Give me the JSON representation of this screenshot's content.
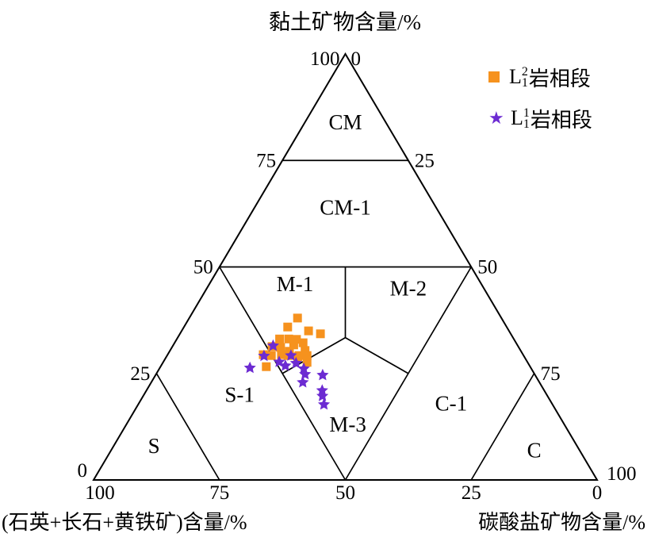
{
  "figure": {
    "top_axis_title": "黏土矿物含量/%",
    "bottom_left_axis_title": "(石英+长石+黄铁矿)含量/%",
    "bottom_right_axis_title": "碳酸盐矿物含量/%"
  },
  "legend": {
    "items": [
      {
        "symbol": "square",
        "color": "#F6921E",
        "label_prefix": "L",
        "label_sup": "2",
        "label_sub": "1",
        "label_text": "岩相段"
      },
      {
        "symbol": "star",
        "color": "#6C2BD2",
        "label_prefix": "L",
        "label_sup": "1",
        "label_sub": "1",
        "label_text": "岩相段"
      }
    ]
  },
  "chart_data": {
    "type": "scatter",
    "subtype": "ternary",
    "component_order": [
      "clay",
      "quartz_feldspar_pyrite",
      "carbonate"
    ],
    "axes": {
      "top_label": "黏土矿物含量/%",
      "bottom_left_label": "(石英+长石+黄铁矿)含量/%",
      "bottom_right_label": "碳酸盐矿物含量/%",
      "left_edge_ticks": [
        "100",
        "75",
        "50",
        "25",
        "0"
      ],
      "right_edge_ticks": [
        "0",
        "25",
        "50",
        "75",
        "100"
      ],
      "bottom_edge_ticks": [
        "100",
        "75",
        "50",
        "25",
        "0"
      ]
    },
    "outline": [
      [
        100,
        0,
        0
      ],
      [
        0,
        100,
        0
      ],
      [
        0,
        0,
        100
      ]
    ],
    "boundaries": [
      {
        "name": "clay-75-line",
        "from": [
          75,
          25,
          0
        ],
        "to": [
          75,
          0,
          25
        ]
      },
      {
        "name": "clay-50-line",
        "from": [
          50,
          50,
          0
        ],
        "to": [
          50,
          0,
          50
        ]
      },
      {
        "name": "m1-m2-divider",
        "from": [
          50,
          25,
          25
        ],
        "to": [
          33.4,
          33.3,
          33.3
        ]
      },
      {
        "name": "centroid-to-quartz50",
        "from": [
          33.4,
          33.3,
          33.3
        ],
        "to": [
          25,
          50,
          25
        ]
      },
      {
        "name": "centroid-to-carbonate50",
        "from": [
          33.4,
          33.3,
          33.3
        ],
        "to": [
          25,
          25,
          50
        ]
      },
      {
        "name": "quartz-50-line",
        "from": [
          50,
          50,
          0
        ],
        "to": [
          0,
          50,
          50
        ]
      },
      {
        "name": "carbonate-50-line",
        "from": [
          50,
          0,
          50
        ],
        "to": [
          0,
          50,
          50
        ]
      },
      {
        "name": "quartz-75-line",
        "from": [
          25,
          75,
          0
        ],
        "to": [
          0,
          75,
          25
        ]
      },
      {
        "name": "carbonate-75-line",
        "from": [
          25,
          0,
          75
        ],
        "to": [
          0,
          25,
          75
        ]
      }
    ],
    "regions": [
      {
        "label": "CM",
        "pos": [
          84,
          8,
          8
        ]
      },
      {
        "label": "CM-1",
        "pos": [
          64,
          18,
          18
        ]
      },
      {
        "label": "M-1",
        "pos": [
          46,
          37,
          17
        ]
      },
      {
        "label": "M-2",
        "pos": [
          45,
          15,
          40
        ]
      },
      {
        "label": "S-1",
        "pos": [
          20,
          61,
          19
        ]
      },
      {
        "label": "M-3",
        "pos": [
          13,
          43,
          44
        ]
      },
      {
        "label": "C-1",
        "pos": [
          18,
          20,
          62
        ]
      },
      {
        "label": "S",
        "pos": [
          8,
          84,
          8
        ]
      },
      {
        "label": "C",
        "pos": [
          7,
          9,
          84
        ]
      }
    ],
    "series": [
      {
        "name": "L1-2岩相段",
        "marker": "square",
        "color": "#F6921E",
        "points": [
          [
            38.0,
            40.5,
            21.5
          ],
          [
            35.9,
            43.5,
            20.6
          ],
          [
            35.0,
            39.8,
            25.2
          ],
          [
            34.3,
            37.8,
            27.9
          ],
          [
            33.1,
            46.5,
            20.4
          ],
          [
            33.1,
            44.7,
            22.2
          ],
          [
            33.0,
            43.2,
            23.8
          ],
          [
            32.2,
            42.3,
            25.5
          ],
          [
            31.7,
            44.4,
            23.9
          ],
          [
            31.3,
            48.9,
            19.8
          ],
          [
            31.1,
            47.3,
            21.6
          ],
          [
            30.4,
            42.8,
            26.8
          ],
          [
            30.2,
            46.0,
            23.8
          ],
          [
            29.4,
            51.6,
            19.0
          ],
          [
            29.4,
            48.0,
            22.6
          ],
          [
            29.2,
            50.1,
            20.7
          ],
          [
            29.2,
            46.8,
            24.0
          ],
          [
            29.2,
            44.6,
            26.2
          ],
          [
            29.2,
            43.0,
            27.8
          ],
          [
            28.9,
            45.0,
            26.1
          ],
          [
            27.6,
            43.8,
            28.6
          ],
          [
            26.6,
            52.4,
            21.0
          ]
        ]
      },
      {
        "name": "L1-1岩相段",
        "marker": "star",
        "color": "#6C2BD2",
        "points": [
          [
            31.5,
            48.6,
            19.9
          ],
          [
            29.2,
            46.2,
            24.6
          ],
          [
            29.1,
            51.6,
            19.3
          ],
          [
            27.7,
            49.3,
            23.0
          ],
          [
            27.4,
            46.1,
            26.5
          ],
          [
            26.8,
            48.5,
            24.7
          ],
          [
            26.3,
            55.8,
            17.9
          ],
          [
            26.1,
            45.2,
            28.7
          ],
          [
            24.8,
            45.6,
            29.6
          ],
          [
            24.6,
            42.2,
            33.2
          ],
          [
            22.9,
            47.0,
            30.1
          ],
          [
            21.0,
            44.1,
            34.9
          ],
          [
            19.7,
            44.7,
            35.6
          ],
          [
            17.7,
            45.4,
            36.9
          ]
        ]
      }
    ]
  }
}
